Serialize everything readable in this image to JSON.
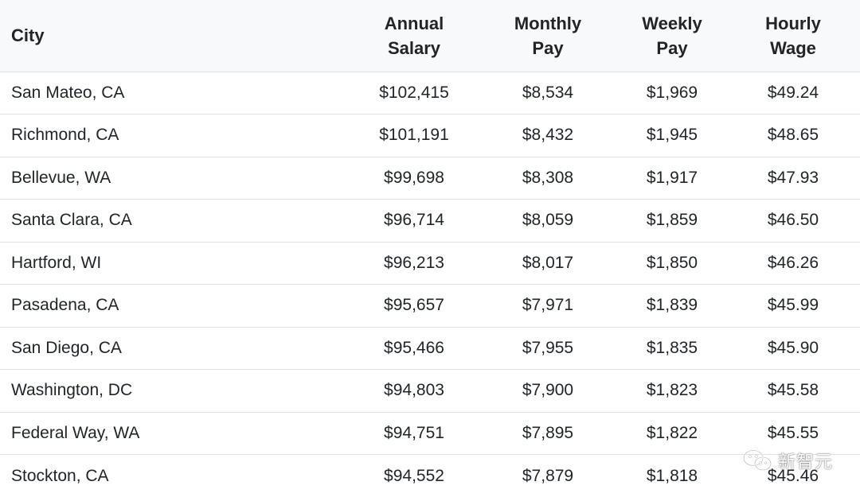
{
  "table": {
    "headers": {
      "city": "City",
      "annual_line1": "Annual",
      "annual_line2": "Salary",
      "monthly_line1": "Monthly",
      "monthly_line2": "Pay",
      "weekly_line1": "Weekly",
      "weekly_line2": "Pay",
      "hourly_line1": "Hourly",
      "hourly_line2": "Wage"
    },
    "rows": [
      {
        "city": "San Mateo, CA",
        "annual": "$102,415",
        "monthly": "$8,534",
        "weekly": "$1,969",
        "hourly": "$49.24"
      },
      {
        "city": "Richmond, CA",
        "annual": "$101,191",
        "monthly": "$8,432",
        "weekly": "$1,945",
        "hourly": "$48.65"
      },
      {
        "city": "Bellevue, WA",
        "annual": "$99,698",
        "monthly": "$8,308",
        "weekly": "$1,917",
        "hourly": "$47.93"
      },
      {
        "city": "Santa Clara, CA",
        "annual": "$96,714",
        "monthly": "$8,059",
        "weekly": "$1,859",
        "hourly": "$46.50"
      },
      {
        "city": "Hartford, WI",
        "annual": "$96,213",
        "monthly": "$8,017",
        "weekly": "$1,850",
        "hourly": "$46.26"
      },
      {
        "city": "Pasadena, CA",
        "annual": "$95,657",
        "monthly": "$7,971",
        "weekly": "$1,839",
        "hourly": "$45.99"
      },
      {
        "city": "San Diego, CA",
        "annual": "$95,466",
        "monthly": "$7,955",
        "weekly": "$1,835",
        "hourly": "$45.90"
      },
      {
        "city": "Washington, DC",
        "annual": "$94,803",
        "monthly": "$7,900",
        "weekly": "$1,823",
        "hourly": "$45.58"
      },
      {
        "city": "Federal Way, WA",
        "annual": "$94,751",
        "monthly": "$7,895",
        "weekly": "$1,822",
        "hourly": "$45.55"
      },
      {
        "city": "Stockton, CA",
        "annual": "$94,552",
        "monthly": "$7,879",
        "weekly": "$1,818",
        "hourly": "$45.46"
      }
    ]
  },
  "watermark": {
    "text": "新智元",
    "icon": "wechat-icon"
  }
}
